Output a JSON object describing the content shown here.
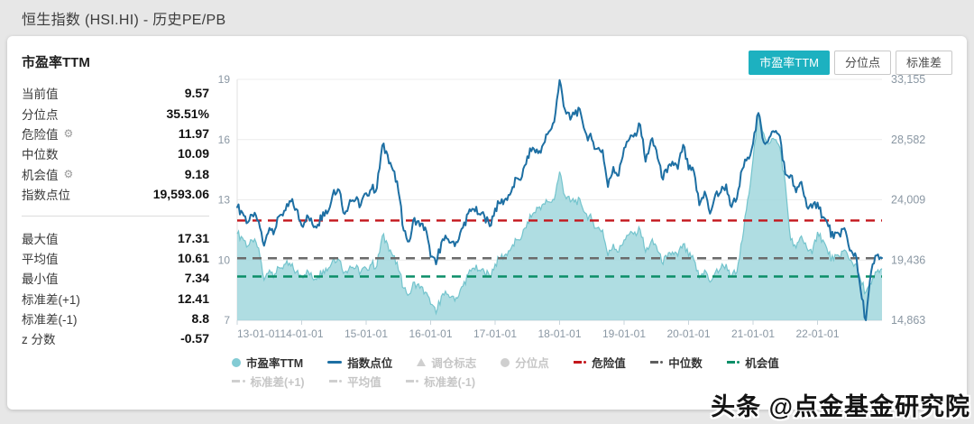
{
  "page": {
    "title": "恒生指数 (HSI.HI) - 历史PE/PB",
    "watermark": "头条 @点金基金研究院",
    "accent_color": "#1db1c0"
  },
  "card": {
    "header": "市盈率TTM",
    "toggle_buttons": [
      {
        "label": "市盈率TTM",
        "active": true
      },
      {
        "label": "分位点",
        "active": false
      },
      {
        "label": "标准差",
        "active": false
      }
    ],
    "stats_primary": [
      {
        "label": "当前值",
        "value": "9.57",
        "gear": false
      },
      {
        "label": "分位点",
        "value": "35.51%",
        "gear": false
      },
      {
        "label": "危险值",
        "value": "11.97",
        "gear": true
      },
      {
        "label": "中位数",
        "value": "10.09",
        "gear": false
      },
      {
        "label": "机会值",
        "value": "9.18",
        "gear": true
      },
      {
        "label": "指数点位",
        "value": "19,593.06",
        "gear": false
      }
    ],
    "stats_secondary": [
      {
        "label": "最大值",
        "value": "17.31"
      },
      {
        "label": "平均值",
        "value": "10.61"
      },
      {
        "label": "最小值",
        "value": "7.34"
      },
      {
        "label": "标准差(+1)",
        "value": "12.41"
      },
      {
        "label": "标准差(-1)",
        "value": "8.8"
      },
      {
        "label": "z 分数",
        "value": "-0.57"
      }
    ],
    "gear_icon": "⚙"
  },
  "chart_data": {
    "type": "area",
    "x_tick_labels": [
      "13-01-01",
      "14-01-01",
      "15-01-01",
      "16-01-01",
      "17-01-01",
      "18-01-01",
      "19-01-01",
      "20-01-01",
      "21-01-01",
      "22-01-01"
    ],
    "left_axis": {
      "ticks": [
        7,
        10,
        13,
        16,
        19
      ],
      "range": [
        7,
        19
      ]
    },
    "right_axis": {
      "ticks": [
        14863,
        19436,
        24009,
        28582,
        33155
      ],
      "tick_labels": [
        "14,863",
        "19,436",
        "24,009",
        "28,582",
        "33,155"
      ],
      "range": [
        14863,
        33155
      ]
    },
    "grid": true,
    "series": [
      {
        "name": "市盈率TTM",
        "axis": "left",
        "type": "area",
        "fill_color": "#9ed6dc",
        "edge_color": "#74c4cd",
        "values": [
          11.3,
          11.1,
          10.7,
          10.9,
          10.6,
          9.0,
          9.5,
          9.3,
          9.6,
          9.8,
          9.7,
          9.4,
          9.2,
          9.5,
          9.1,
          9.2,
          9.5,
          9.6,
          10.1,
          10.0,
          9.4,
          9.7,
          9.6,
          9.4,
          9.6,
          9.8,
          9.7,
          11.2,
          10.8,
          10.2,
          9.5,
          8.6,
          8.3,
          8.9,
          8.6,
          8.4,
          7.8,
          7.34,
          8.2,
          8.3,
          8.2,
          8.1,
          8.7,
          9.3,
          9.6,
          9.5,
          9.4,
          9.2,
          9.8,
          10.1,
          10.3,
          10.6,
          11.0,
          11.2,
          11.9,
          12.3,
          12.6,
          12.8,
          12.9,
          13.0,
          14.4,
          13.2,
          12.9,
          13.0,
          12.8,
          12.3,
          12.0,
          11.6,
          11.5,
          10.2,
          10.8,
          10.4,
          11.0,
          11.3,
          11.4,
          11.5,
          10.4,
          10.9,
          10.7,
          9.9,
          10.1,
          10.4,
          10.2,
          10.8,
          10.2,
          10.0,
          9.1,
          9.5,
          8.9,
          9.4,
          9.6,
          9.8,
          9.2,
          9.4,
          11.0,
          13.0,
          15.0,
          17.31,
          16.3,
          15.8,
          16.0,
          15.6,
          13.8,
          11.0,
          10.6,
          11.2,
          10.6,
          10.3,
          11.4,
          11.0,
          10.3,
          10.0,
          10.2,
          10.5,
          10.0,
          9.8,
          9.0,
          8.4,
          8.8,
          9.4,
          9.57
        ]
      },
      {
        "name": "指数点位",
        "axis": "right",
        "type": "line",
        "color": "#1d6fa3",
        "values": [
          23450,
          23020,
          22300,
          22740,
          22390,
          20520,
          21880,
          21730,
          22860,
          23210,
          23880,
          23310,
          22040,
          22840,
          22150,
          22130,
          23080,
          23190,
          24760,
          24740,
          22930,
          24000,
          23990,
          23610,
          24510,
          24820,
          24900,
          28130,
          27420,
          26250,
          24640,
          21670,
          20850,
          22640,
          22000,
          21910,
          19680,
          19110,
          20780,
          21070,
          20820,
          20790,
          21890,
          22980,
          23300,
          22940,
          22790,
          22000,
          23360,
          23740,
          24110,
          24620,
          25660,
          25760,
          27320,
          27970,
          27550,
          28250,
          29180,
          29920,
          33100,
          30850,
          30090,
          30810,
          30470,
          28960,
          28580,
          27890,
          27790,
          24980,
          26510,
          25850,
          27940,
          28630,
          29050,
          29700,
          26900,
          28540,
          27780,
          25730,
          26090,
          26910,
          26350,
          28190,
          26310,
          26130,
          23600,
          24640,
          22960,
          24430,
          24600,
          25180,
          23460,
          24110,
          26340,
          27230,
          28280,
          30600,
          28380,
          28730,
          29150,
          28830,
          25960,
          25880,
          24580,
          25380,
          23480,
          23400,
          23800,
          22710,
          22000,
          21090,
          21420,
          21860,
          20160,
          19950,
          17220,
          14863,
          18600,
          19780,
          19593
        ]
      }
    ],
    "reference_lines": [
      {
        "name": "危险值",
        "value": 11.97,
        "color": "#c3161c"
      },
      {
        "name": "中位数",
        "value": 10.09,
        "color": "#6b6b6b"
      },
      {
        "name": "机会值",
        "value": 9.18,
        "color": "#0b8e68"
      }
    ],
    "legend_row1": [
      {
        "label": "市盈率TTM",
        "marker": "circle",
        "color": "#83cbd4",
        "active": true
      },
      {
        "label": "指数点位",
        "marker": "line",
        "color": "#1d6fa3",
        "active": true
      },
      {
        "label": "调仓标志",
        "marker": "triangle",
        "color": "#cfcfcf",
        "active": false
      },
      {
        "label": "分位点",
        "marker": "circle",
        "color": "#cfcfcf",
        "active": false
      },
      {
        "label": "危险值",
        "marker": "dashdot",
        "color": "#c3161c",
        "active": true
      },
      {
        "label": "中位数",
        "marker": "dashdot",
        "color": "#5f5f5f",
        "active": true
      },
      {
        "label": "机会值",
        "marker": "dashdot",
        "color": "#0b8e68",
        "active": true
      }
    ],
    "legend_row2": [
      {
        "label": "标准差(+1)",
        "marker": "dashdot",
        "color": "#cfcfcf",
        "active": false
      },
      {
        "label": "平均值",
        "marker": "dashdot",
        "color": "#cfcfcf",
        "active": false
      },
      {
        "label": "标准差(-1)",
        "marker": "dashdot",
        "color": "#cfcfcf",
        "active": false
      }
    ]
  }
}
